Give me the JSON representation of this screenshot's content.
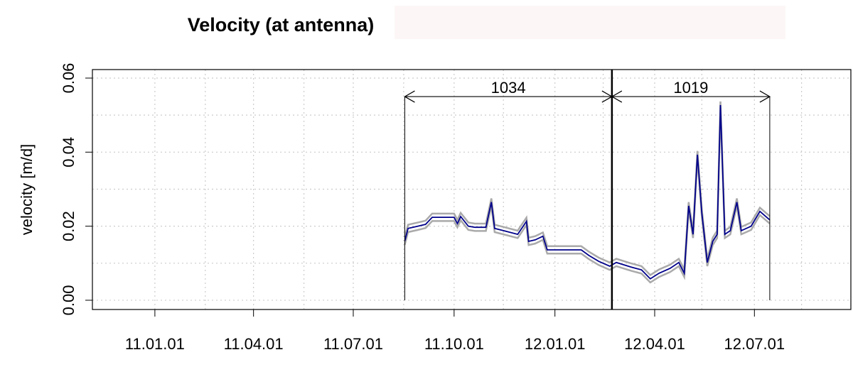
{
  "chart_data": {
    "type": "line",
    "title": "Velocity (at antenna)",
    "y_label": "velocity [m/d]",
    "xlim": [
      "2010-11-05",
      "2012-09-27"
    ],
    "ylim": [
      -0.0025,
      0.0623
    ],
    "yticks": [
      {
        "value": 0,
        "label": "0.00"
      },
      {
        "value": 0.02,
        "label": "0.02"
      },
      {
        "value": 0.04,
        "label": "0.04"
      },
      {
        "value": 0.06,
        "label": "0.06"
      }
    ],
    "y_minor_grid": [
      0.01,
      0.03,
      0.05
    ],
    "xticks": [
      {
        "value": "2011-01-01",
        "label": "11.01.01"
      },
      {
        "value": "2011-04-01",
        "label": "11.04.01"
      },
      {
        "value": "2011-07-01",
        "label": "11.07.01"
      },
      {
        "value": "2011-10-01",
        "label": "11.10.01"
      },
      {
        "value": "2012-01-01",
        "label": "12.01.01"
      },
      {
        "value": "2012-04-01",
        "label": "12.04.01"
      },
      {
        "value": "2012-07-01",
        "label": "12.07.01"
      }
    ],
    "x_minor_grid": [
      "2011-02-16",
      "2011-05-17",
      "2011-08-16",
      "2011-11-15",
      "2012-02-14",
      "2012-05-14",
      "2012-08-13"
    ],
    "grid": true,
    "x": [
      "2011-08-17",
      "2011-08-20",
      "2011-08-29",
      "2011-09-05",
      "2011-09-11",
      "2011-09-21",
      "2011-10-01",
      "2011-10-04",
      "2011-10-07",
      "2011-10-14",
      "2011-10-20",
      "2011-10-30",
      "2011-11-04",
      "2011-11-07",
      "2011-11-15",
      "2011-11-28",
      "2011-12-06",
      "2011-12-08",
      "2011-12-14",
      "2011-12-21",
      "2011-12-25",
      "2012-01-25",
      "2012-02-01",
      "2012-02-10",
      "2012-02-20",
      "2012-02-26",
      "2012-03-10",
      "2012-03-20",
      "2012-03-28",
      "2012-04-05",
      "2012-04-15",
      "2012-04-23",
      "2012-04-28",
      "2012-05-02",
      "2012-05-06",
      "2012-05-10",
      "2012-05-14",
      "2012-05-19",
      "2012-05-24",
      "2012-05-28",
      "2012-05-31",
      "2012-06-04",
      "2012-06-09",
      "2012-06-15",
      "2012-06-19",
      "2012-06-28",
      "2012-07-06",
      "2012-07-15"
    ],
    "series": [
      {
        "color": "#aaaaaa",
        "values": [
          0.017,
          0.0204,
          0.021,
          0.0215,
          0.0234,
          0.0234,
          0.0234,
          0.0217,
          0.0236,
          0.021,
          0.0207,
          0.0207,
          0.0275,
          0.0204,
          0.0198,
          0.0188,
          0.0223,
          0.0169,
          0.0173,
          0.0183,
          0.0146,
          0.0146,
          0.0131,
          0.0115,
          0.0102,
          0.0112,
          0.01,
          0.0092,
          0.0068,
          0.0083,
          0.0096,
          0.0112,
          0.0083,
          0.0265,
          0.0188,
          0.0403,
          0.0246,
          0.0112,
          0.0169,
          0.0188,
          0.0537,
          0.0188,
          0.0198,
          0.0275,
          0.0198,
          0.021,
          0.025,
          0.0227
        ]
      },
      {
        "color": "#aaaaaa",
        "values": [
          0.015,
          0.0184,
          0.019,
          0.0195,
          0.0214,
          0.0214,
          0.0214,
          0.0197,
          0.0216,
          0.019,
          0.0187,
          0.0187,
          0.0255,
          0.0184,
          0.0178,
          0.0168,
          0.0203,
          0.0149,
          0.0153,
          0.0163,
          0.0126,
          0.0126,
          0.0111,
          0.0095,
          0.0082,
          0.0092,
          0.008,
          0.0072,
          0.0048,
          0.0063,
          0.0076,
          0.0092,
          0.0063,
          0.0245,
          0.0168,
          0.0383,
          0.0226,
          0.0092,
          0.0149,
          0.0168,
          0.0517,
          0.0168,
          0.0178,
          0.0255,
          0.0178,
          0.019,
          0.023,
          0.0207
        ]
      },
      {
        "color": "#00008b",
        "values": [
          0.016,
          0.0194,
          0.02,
          0.0205,
          0.0224,
          0.0224,
          0.0224,
          0.0207,
          0.0226,
          0.02,
          0.0197,
          0.0197,
          0.0265,
          0.0194,
          0.0188,
          0.0178,
          0.0213,
          0.0159,
          0.0163,
          0.0173,
          0.0136,
          0.0136,
          0.0121,
          0.0105,
          0.0092,
          0.0102,
          0.009,
          0.0082,
          0.0058,
          0.0073,
          0.0086,
          0.0102,
          0.0073,
          0.0255,
          0.0178,
          0.0393,
          0.0236,
          0.0102,
          0.0159,
          0.0178,
          0.0527,
          0.0178,
          0.0188,
          0.0265,
          0.0188,
          0.02,
          0.024,
          0.0217
        ]
      }
    ],
    "annotations": [
      {
        "label": "1034",
        "x": [
          "2011-08-17",
          "2012-02-22"
        ],
        "y": 0.055
      },
      {
        "label": "1019",
        "x": [
          "2012-02-22",
          "2012-07-15"
        ],
        "y": 0.055
      }
    ]
  }
}
